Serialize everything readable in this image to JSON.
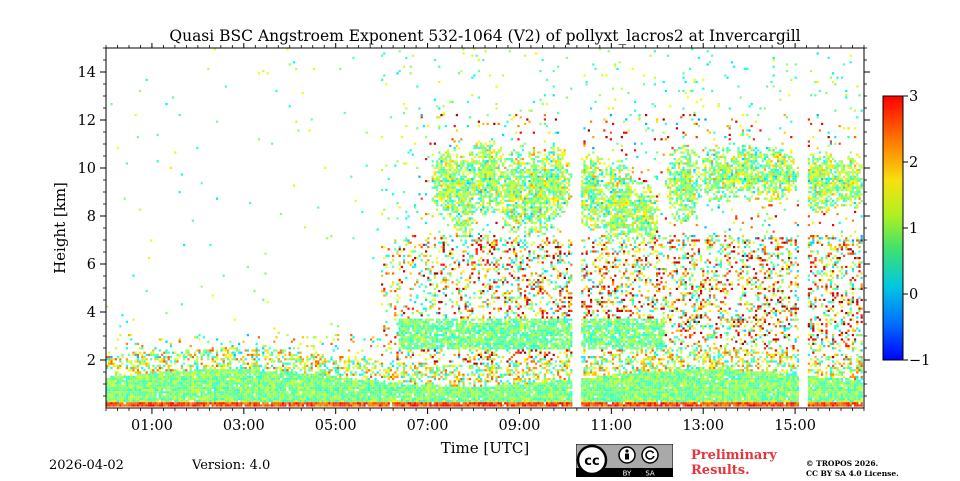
{
  "chart_data": {
    "type": "heatmap",
    "title": "Quasi BSC Angstroem Exponent 532-1064 (V2) of pollyxt_lacros2 at Invercargill",
    "xlabel": "Time [UTC]",
    "ylabel": "Height [km]",
    "x_unit": "hours UTC",
    "xlim": [
      0.0,
      16.5
    ],
    "ylim": [
      0.0,
      15.0
    ],
    "x_ticks": [
      1,
      3,
      5,
      7,
      9,
      11,
      13,
      15
    ],
    "x_tick_labels": [
      "01:00",
      "03:00",
      "05:00",
      "07:00",
      "09:00",
      "11:00",
      "13:00",
      "15:00"
    ],
    "y_ticks": [
      2,
      4,
      6,
      8,
      10,
      12,
      14
    ],
    "y_tick_labels": [
      "2",
      "4",
      "6",
      "8",
      "10",
      "12",
      "14"
    ],
    "colorbar": {
      "min": -1,
      "max": 3,
      "ticks": [
        -1,
        0,
        1,
        2,
        3
      ],
      "tick_labels": [
        "−1",
        "0",
        "1",
        "2",
        "3"
      ],
      "colormap": "jet"
    },
    "data_gaps_hours": [
      [
        10.18,
        10.36
      ],
      [
        15.1,
        15.3
      ]
    ],
    "features": [
      {
        "name": "boundary layer",
        "x_range": [
          0.0,
          16.5
        ],
        "height_km": [
          0.0,
          1.6
        ],
        "typical_value": 1.0
      },
      {
        "name": "elevated aerosol layer",
        "x_range": [
          6.5,
          12.0
        ],
        "height_km": [
          2.5,
          3.7
        ],
        "typical_value": 1.0
      },
      {
        "name": "cirrus layer",
        "x_range": [
          7.0,
          16.5
        ],
        "height_km": [
          7.0,
          12.0
        ],
        "typical_value": 0.8
      },
      {
        "name": "noisy region",
        "x_range": [
          6.0,
          16.5
        ],
        "height_km": [
          1.5,
          7.0
        ],
        "typical_value": 1.5
      }
    ]
  },
  "footer": {
    "date": "2026-04-02",
    "version": "Version: 4.0",
    "preliminary_line1": "Preliminary",
    "preliminary_line2": "Results.",
    "copyright_line1": "© TROPOS 2026.",
    "copyright_line2": "CC BY SA 4.0 License."
  },
  "license_badge": {
    "cc": "cc",
    "by": "BY",
    "sa": "SA"
  }
}
